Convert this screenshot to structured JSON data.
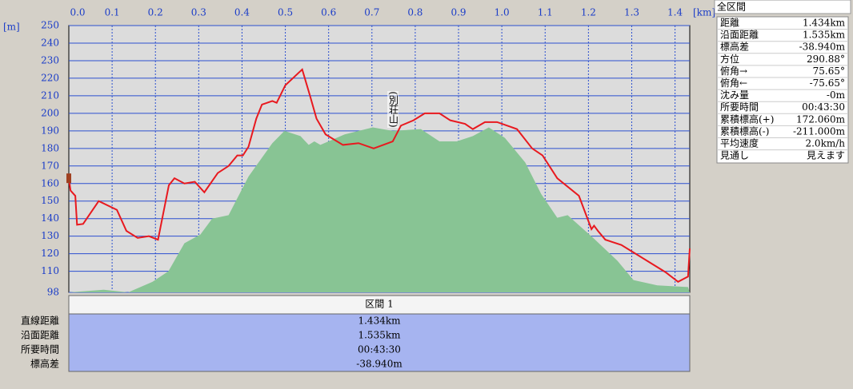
{
  "chart_data": {
    "type": "area-line",
    "y_label": "[m]",
    "x_label": "[km]",
    "annotation": "(別荘山)",
    "xlim": [
      0,
      1.434
    ],
    "ylim": [
      98,
      250
    ],
    "xticks": [
      {
        "value": 0,
        "label": "0.0"
      },
      0.1,
      0.2,
      0.3,
      0.4,
      0.5,
      0.6,
      0.7,
      0.8,
      0.9,
      {
        "value": 1,
        "label": "1.0"
      },
      1.1,
      1.2,
      1.3,
      1.4
    ],
    "yticks": [
      98,
      110,
      120,
      130,
      140,
      150,
      160,
      170,
      180,
      190,
      200,
      210,
      220,
      230,
      240,
      250
    ],
    "grid": true,
    "series": [
      {
        "kind": "area",
        "color": "#88c494",
        "x": [
          0,
          0.081,
          0.137,
          0.193,
          0.23,
          0.267,
          0.304,
          0.331,
          0.369,
          0.415,
          0.47,
          0.498,
          0.535,
          0.554,
          0.567,
          0.581,
          0.637,
          0.702,
          0.748,
          0.813,
          0.856,
          0.896,
          0.933,
          0.97,
          1.007,
          1.054,
          1.091,
          1.128,
          1.152,
          1.211,
          1.267,
          1.304,
          1.359,
          1.43,
          1.434
        ],
        "values": [
          98,
          99.5,
          98,
          104,
          110,
          126,
          131,
          140,
          142,
          164,
          183,
          190,
          187,
          182,
          184,
          182,
          188,
          192,
          190,
          191,
          184,
          184,
          187,
          192,
          186,
          172,
          154,
          140.5,
          142,
          129,
          116,
          105,
          102,
          101,
          98
        ]
      },
      {
        "kind": "line",
        "color": "#e8191f",
        "x": [
          0,
          0.004,
          0.015,
          0.019,
          0.033,
          0.069,
          0.111,
          0.133,
          0.159,
          0.185,
          0.206,
          0.231,
          0.244,
          0.267,
          0.291,
          0.313,
          0.344,
          0.369,
          0.389,
          0.402,
          0.415,
          0.433,
          0.446,
          0.47,
          0.48,
          0.5,
          0.539,
          0.557,
          0.572,
          0.593,
          0.633,
          0.669,
          0.704,
          0.748,
          0.767,
          0.796,
          0.822,
          0.856,
          0.881,
          0.915,
          0.933,
          0.961,
          0.989,
          1.035,
          1.07,
          1.094,
          1.128,
          1.178,
          1.207,
          1.213,
          1.222,
          1.239,
          1.276,
          1.378,
          1.407,
          1.43,
          1.434
        ],
        "values": [
          163,
          156,
          153,
          136.5,
          137,
          150,
          145,
          133,
          129,
          130,
          128,
          159,
          163,
          160,
          161,
          155,
          166,
          170,
          176,
          176,
          181,
          197,
          205,
          207,
          206,
          216,
          225,
          210,
          197,
          188,
          182,
          183,
          180,
          184,
          193,
          196,
          200,
          200,
          196,
          194,
          191,
          195,
          195,
          191,
          180,
          176,
          163,
          153,
          134,
          136,
          133,
          128,
          125,
          109.5,
          104,
          107,
          123
        ]
      }
    ]
  },
  "summary": {
    "title": "全区間",
    "rows": [
      [
        "距離",
        "1.434km"
      ],
      [
        "沿面距離",
        "1.535km"
      ],
      [
        "標高差",
        "-38.940m"
      ],
      [
        "方位",
        "290.88°"
      ],
      [
        "俯角→",
        "75.65°"
      ],
      [
        "俯角←",
        "-75.65°"
      ],
      [
        "沈み量",
        "-0m"
      ],
      [
        "所要時間",
        "00:43:30"
      ],
      [
        "累積標高(+)",
        "172.060m"
      ],
      [
        "累積標高(-)",
        "-211.000m"
      ],
      [
        "平均速度",
        "2.0km/h"
      ],
      [
        "見通し",
        "見えます"
      ]
    ]
  },
  "section": {
    "title": "区間 1",
    "rows": [
      [
        "直線距離",
        "1.434km"
      ],
      [
        "沿面距離",
        "1.535km"
      ],
      [
        "所要時間",
        "00:43:30"
      ],
      [
        "標高差",
        "-38.940m"
      ]
    ]
  }
}
